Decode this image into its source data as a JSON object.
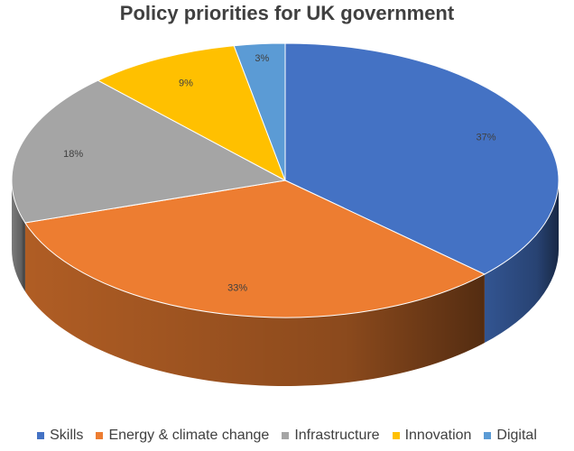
{
  "chart_data": {
    "type": "pie",
    "title": "Policy priorities for UK government",
    "categories": [
      "Skills",
      "Energy & climate change",
      "Infrastructure",
      "Innovation",
      "Digital"
    ],
    "values": [
      37,
      33,
      18,
      9,
      3
    ],
    "labels": [
      "37%",
      "33%",
      "18%",
      "9%",
      "3%"
    ],
    "colors": [
      "#4472C4",
      "#ED7D31",
      "#A5A5A5",
      "#FFC000",
      "#5B9BD5"
    ],
    "legend_position": "bottom",
    "style": "3d"
  }
}
